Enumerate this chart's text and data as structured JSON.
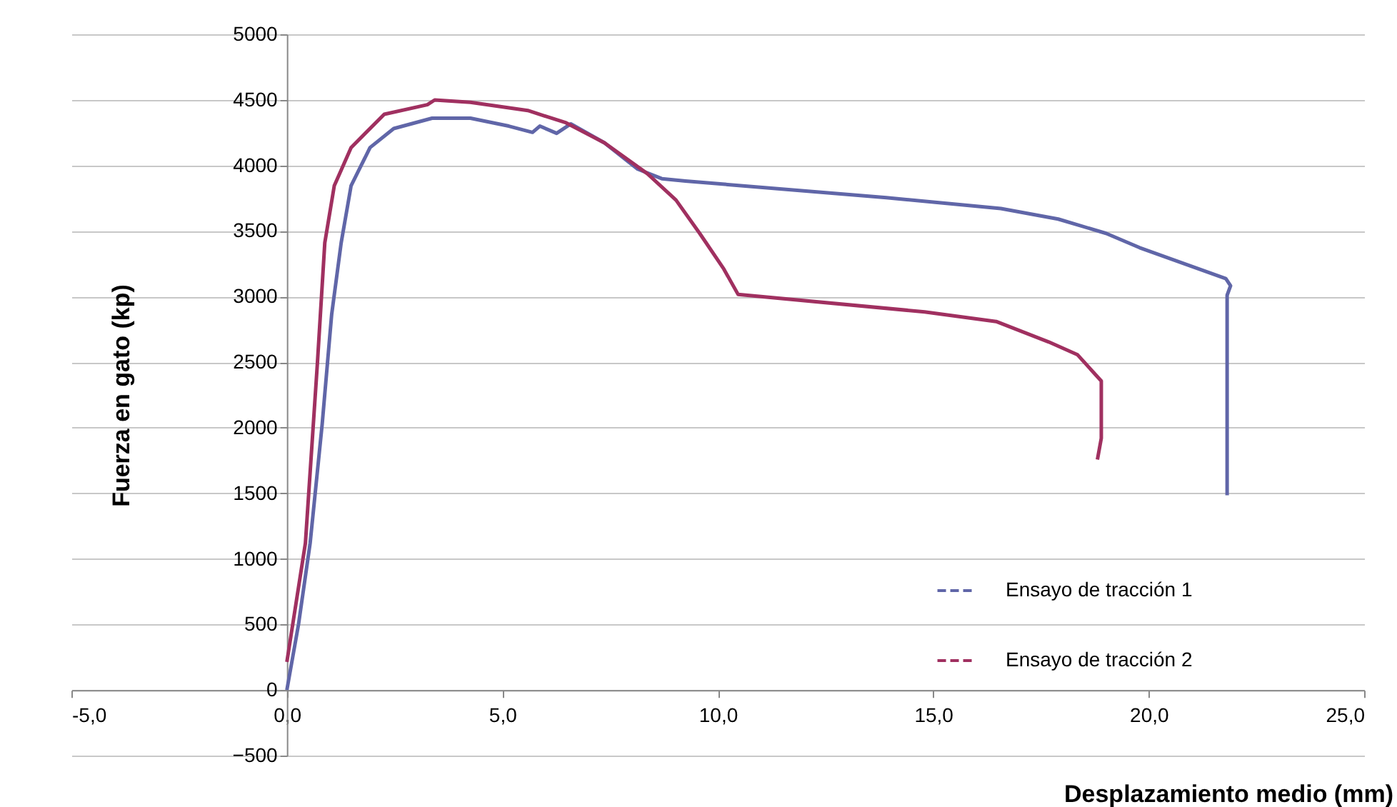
{
  "chart_data": {
    "type": "line",
    "xlabel": "Desplazamiento medio (mm)",
    "ylabel": "Fuerza en gato (kp)",
    "xlim": [
      -5,
      25
    ],
    "ylim": [
      -500,
      5000
    ],
    "xticks": [
      {
        "value": -5,
        "label": "-5,0"
      },
      {
        "value": 0,
        "label": "0,0"
      },
      {
        "value": 5,
        "label": "5,0"
      },
      {
        "value": 10,
        "label": "10,0"
      },
      {
        "value": 15,
        "label": "15,0"
      },
      {
        "value": 20,
        "label": "20,0"
      },
      {
        "value": 25,
        "label": "25,0"
      }
    ],
    "yticks": [
      -500,
      0,
      500,
      1000,
      1500,
      2000,
      2500,
      3000,
      3500,
      4000,
      4500,
      5000
    ],
    "grid": "y",
    "legend": "bottom right",
    "line_style": "solid",
    "marker": "none",
    "series": [
      {
        "name": "Ensayo de tracción  1",
        "color": "#6066a8",
        "x": [
          0,
          0.27,
          0.54,
          0.82,
          1.04,
          1.26,
          1.49,
          1.93,
          2.48,
          3.37,
          4.26,
          5.15,
          5.7,
          5.87,
          6.26,
          6.59,
          7.37,
          8.14,
          8.7,
          9.25,
          13.91,
          16.57,
          17.9,
          19.01,
          19.79,
          21.79,
          21.9,
          21.82,
          21.82
        ],
        "values": [
          0,
          500,
          1120,
          2030,
          2865,
          3410,
          3845,
          4136,
          4281,
          4360,
          4360,
          4300,
          4252,
          4300,
          4245,
          4317,
          4172,
          3972,
          3899,
          3881,
          3754,
          3671,
          3591,
          3482,
          3373,
          3137,
          3083,
          3010,
          1485
        ]
      },
      {
        "name": "Ensayo de tracción  2",
        "color": "#a03060",
        "x": [
          0,
          0.43,
          0.71,
          0.88,
          1.1,
          1.49,
          2.26,
          3.26,
          3.43,
          4.26,
          5.59,
          6.48,
          7.37,
          8.37,
          9.03,
          9.58,
          10.14,
          10.47,
          14.8,
          16.46,
          17.68,
          18.35,
          18.9,
          18.9,
          18.81
        ],
        "values": [
          214,
          1120,
          2500,
          3410,
          3845,
          4136,
          4390,
          4463,
          4499,
          4481,
          4419,
          4325,
          4172,
          3936,
          3736,
          3482,
          3210,
          3017,
          2883,
          2810,
          2654,
          2556,
          2356,
          1920,
          1757
        ]
      }
    ]
  }
}
